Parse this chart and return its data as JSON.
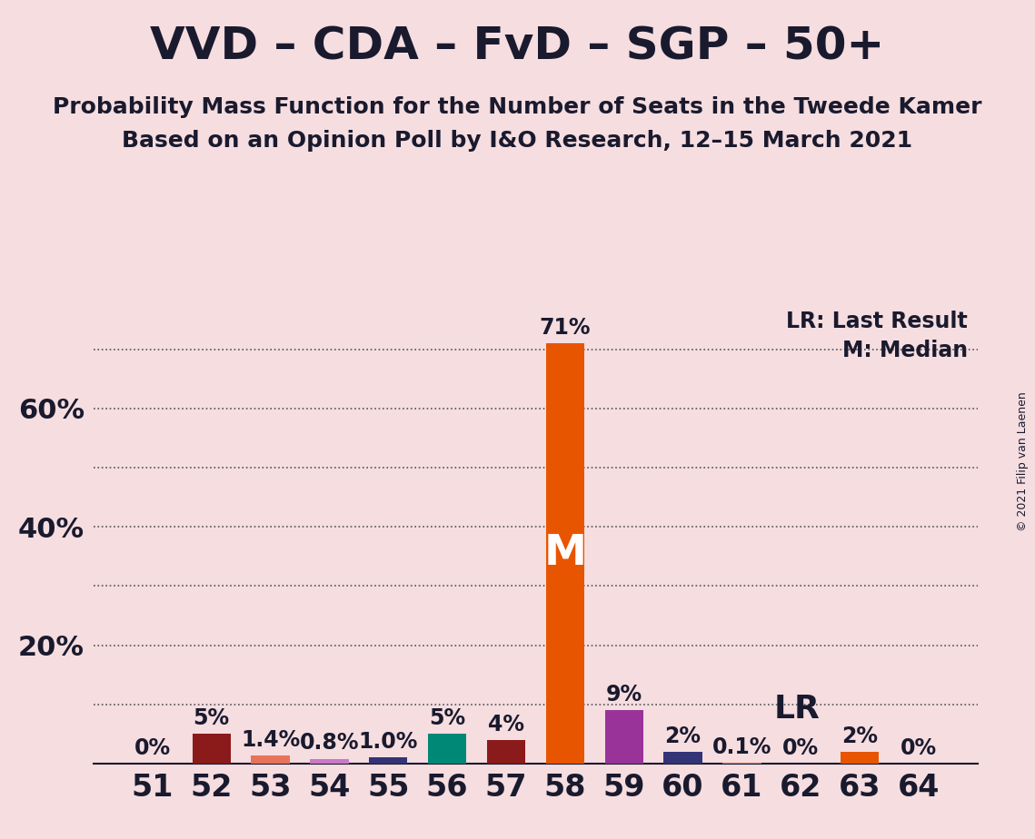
{
  "title": "VVD – CDA – FvD – SGP – 50+",
  "subtitle1": "Probability Mass Function for the Number of Seats in the Tweede Kamer",
  "subtitle2": "Based on an Opinion Poll by I&O Research, 12–15 March 2021",
  "copyright": "© 2021 Filip van Laenen",
  "background_color": "#f5dde0",
  "categories": [
    51,
    52,
    53,
    54,
    55,
    56,
    57,
    58,
    59,
    60,
    61,
    62,
    63,
    64
  ],
  "values": [
    0.0,
    5.0,
    1.4,
    0.8,
    1.0,
    5.0,
    4.0,
    71.0,
    9.0,
    2.0,
    0.1,
    0.0,
    2.0,
    0.0
  ],
  "bar_colors": [
    "#e8735a",
    "#8b1a1a",
    "#e8735a",
    "#cc77cc",
    "#333377",
    "#008877",
    "#8b1a1a",
    "#e85500",
    "#993399",
    "#333377",
    "#e8735a",
    "#e8735a",
    "#e85500",
    "#e8735a"
  ],
  "labels": [
    "0%",
    "5%",
    "1.4%",
    "0.8%",
    "1.0%",
    "5%",
    "4%",
    "71%",
    "9%",
    "2%",
    "0.1%",
    "0%",
    "2%",
    "0%"
  ],
  "median_bar_index": 7,
  "last_result_bar_index": 10,
  "ylim": [
    0,
    78
  ],
  "grid_yticks": [
    10,
    20,
    30,
    40,
    50,
    60,
    70
  ],
  "ylabel_ticks": [
    20,
    40,
    60
  ],
  "title_fontsize": 36,
  "subtitle_fontsize": 18,
  "axis_fontsize": 22,
  "label_fontsize": 17,
  "legend_fontsize": 17,
  "title_color": "#1a1a2e",
  "axis_color": "#1a1a2e",
  "label_color": "#1a1a2e"
}
